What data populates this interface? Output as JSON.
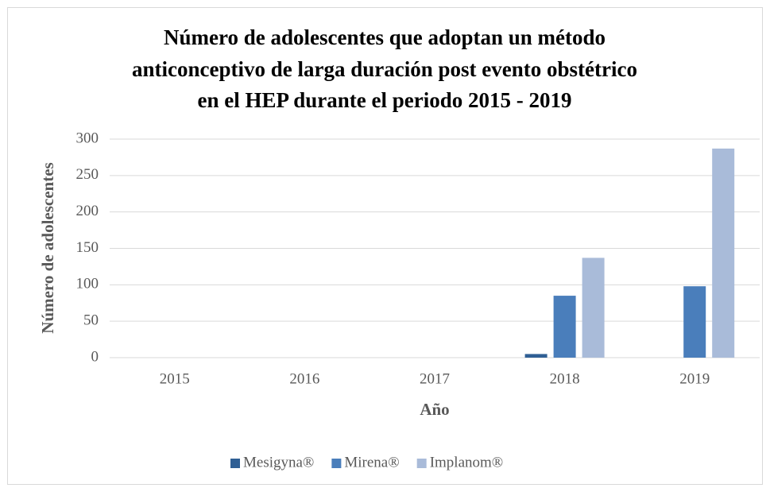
{
  "chart_data": {
    "type": "bar",
    "title": [
      "Número de adolescentes que adoptan un método",
      "anticonceptivo de larga duración post evento obstétrico",
      "en el HEP durante el periodo 2015 - 2019"
    ],
    "x_label": "Año",
    "y_label": "Número de adolescentes",
    "categories": [
      "2015",
      "2016",
      "2017",
      "2018",
      "2019"
    ],
    "series": [
      {
        "name": "Mesigyna®",
        "color": "#2f5f94",
        "values": [
          0,
          0,
          0,
          5,
          0
        ]
      },
      {
        "name": "Mirena®",
        "color": "#4a7ebb",
        "values": [
          0,
          0,
          0,
          85,
          98
        ]
      },
      {
        "name": "Implanom®",
        "color": "#a9bbd9",
        "values": [
          0,
          0,
          0,
          137,
          287
        ]
      }
    ],
    "ylim": [
      0,
      300
    ],
    "yticks": [
      0,
      50,
      100,
      150,
      200,
      250,
      300
    ],
    "grid": true,
    "legend": "bottom"
  }
}
